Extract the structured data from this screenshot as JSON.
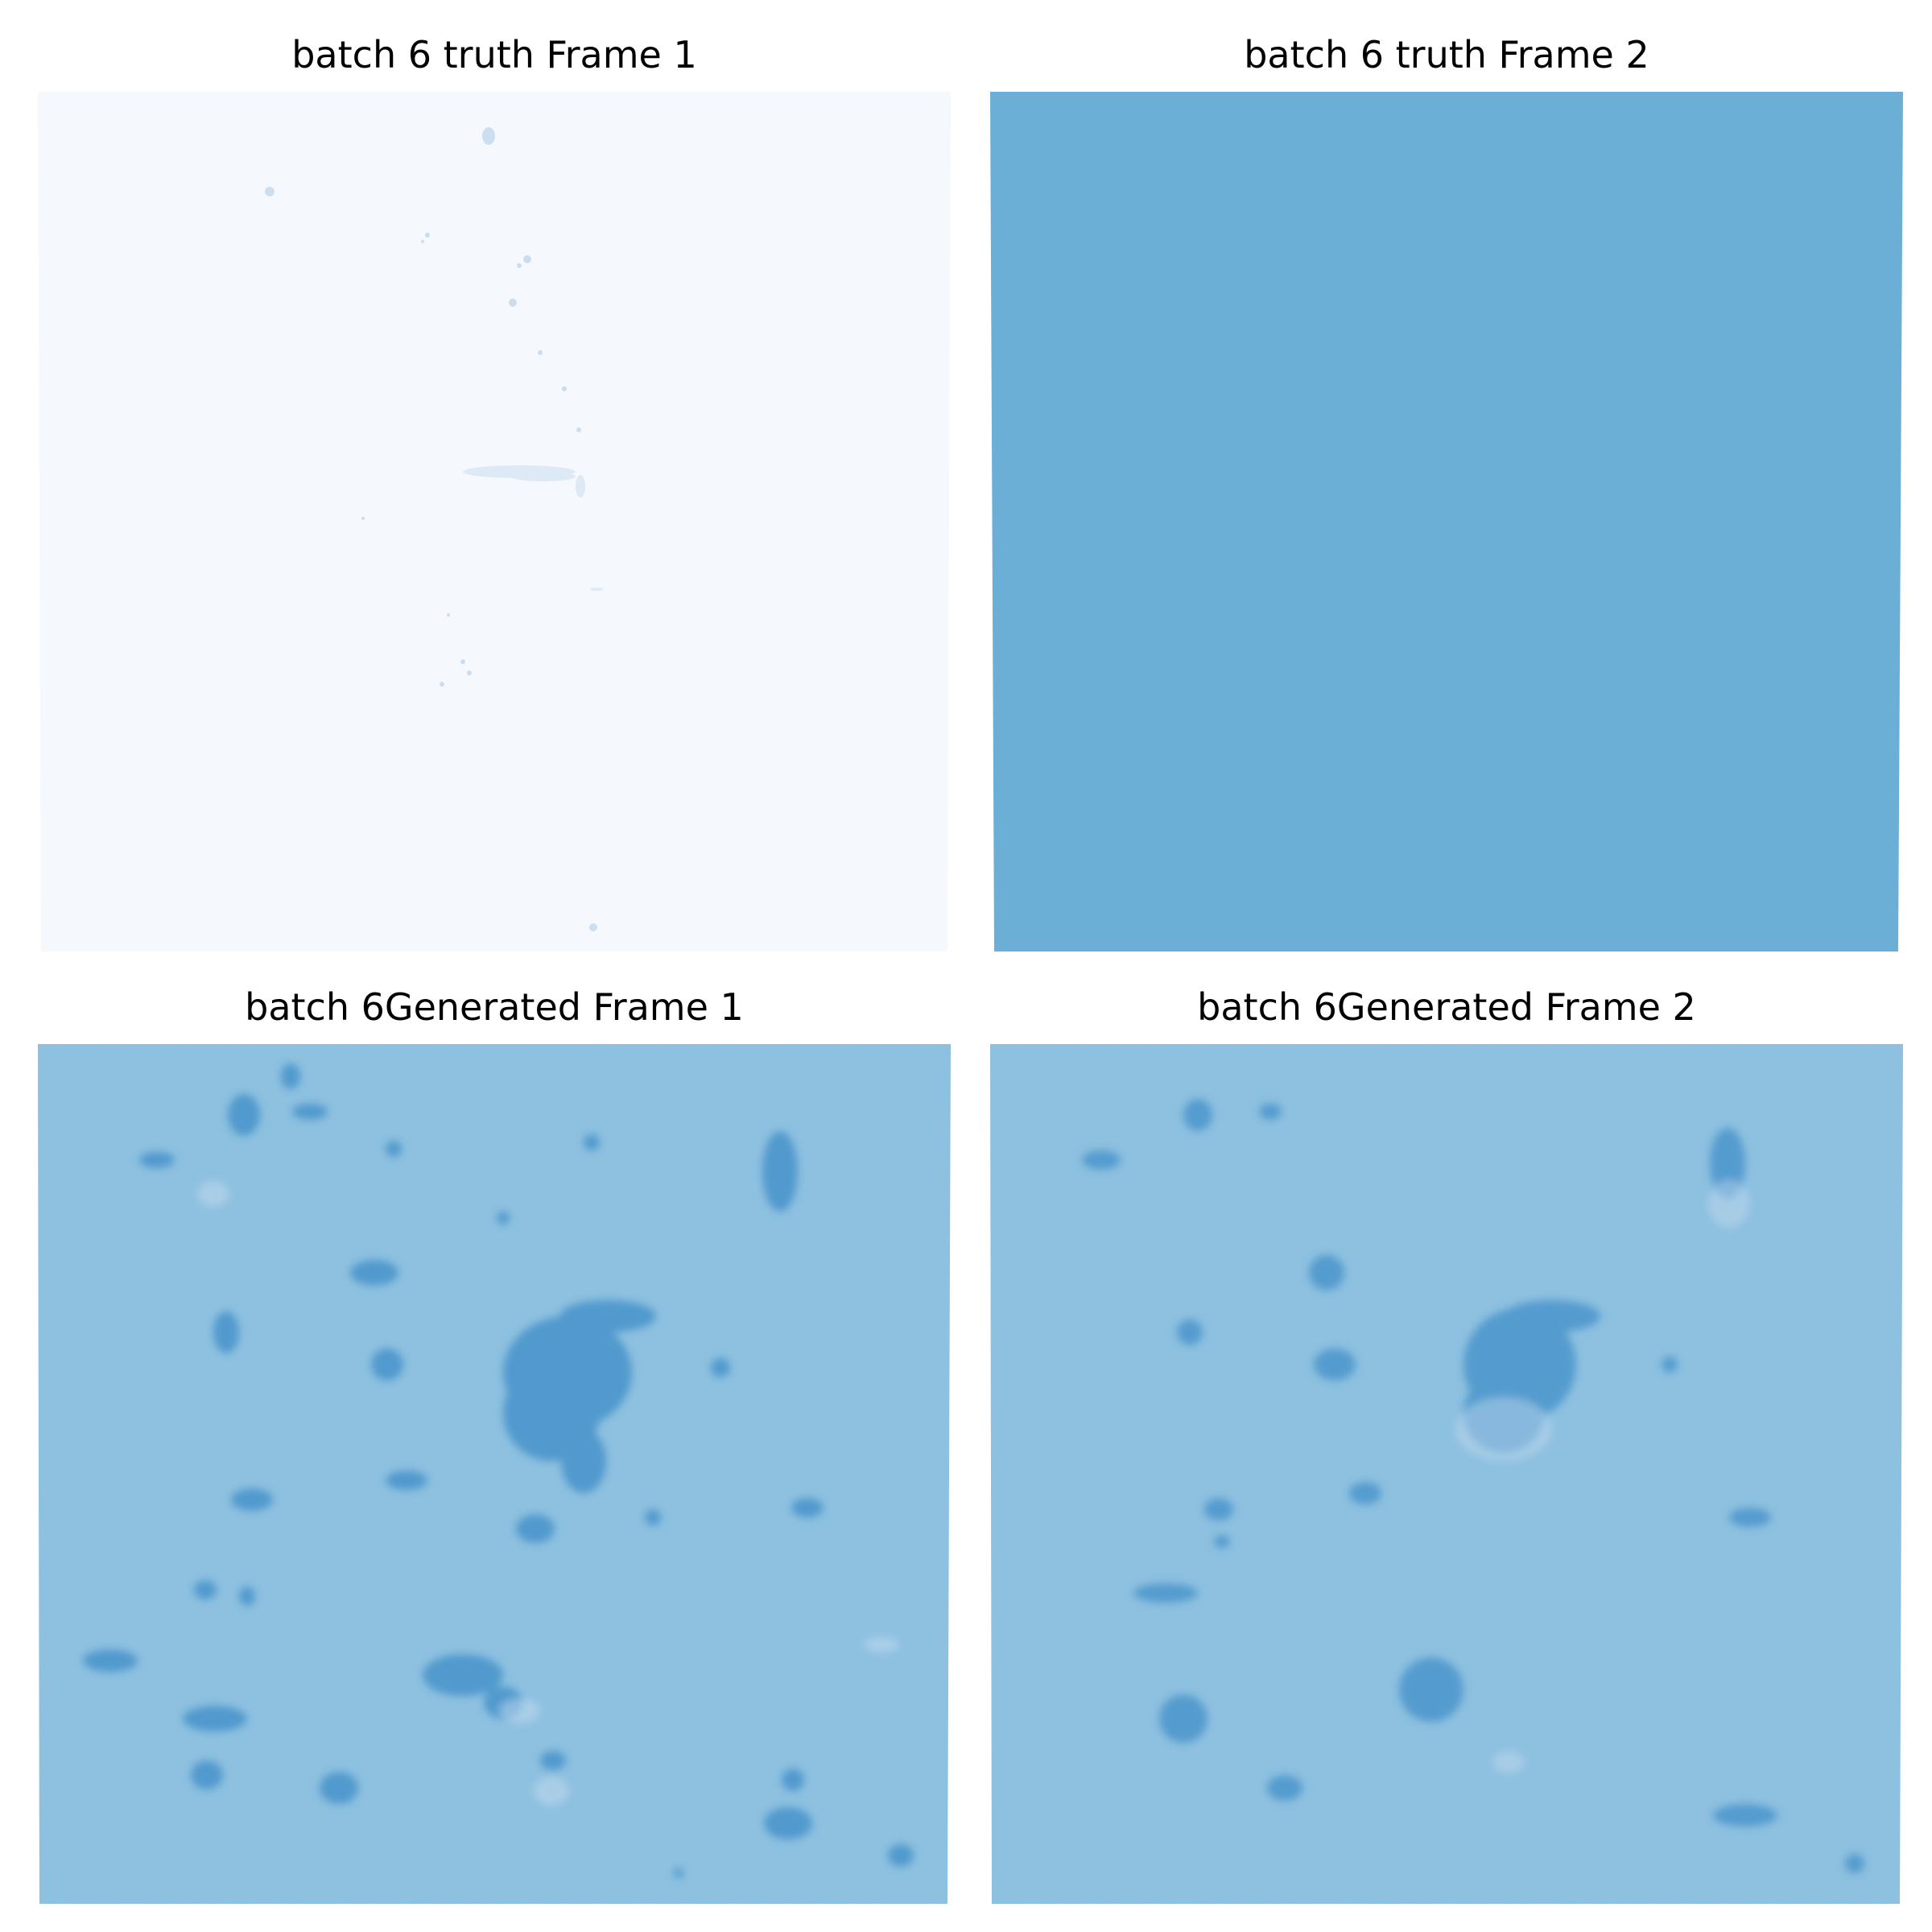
{
  "panels": [
    {
      "title": "batch 6 truth Frame 1",
      "colormap": "Blues",
      "fill": "#f5f9fe",
      "noise": false
    },
    {
      "title": "batch 6 truth Frame 2",
      "colormap": "Blues",
      "fill": "#6baed6",
      "noise": false
    },
    {
      "title": "batch 6Generated Frame 1",
      "colormap": "Blues",
      "fill": "#8ec0df",
      "noise": true
    },
    {
      "title": "batch 6Generated Frame 2",
      "colormap": "Blues",
      "fill": "#8ec0df",
      "noise": true
    }
  ],
  "colors": {
    "light": "#f5f9fe",
    "mid": "#6baed6",
    "generated_bg": "#8ec0df",
    "blob_dark": "#2e7ebc",
    "blob_light": "#c6dbef"
  }
}
